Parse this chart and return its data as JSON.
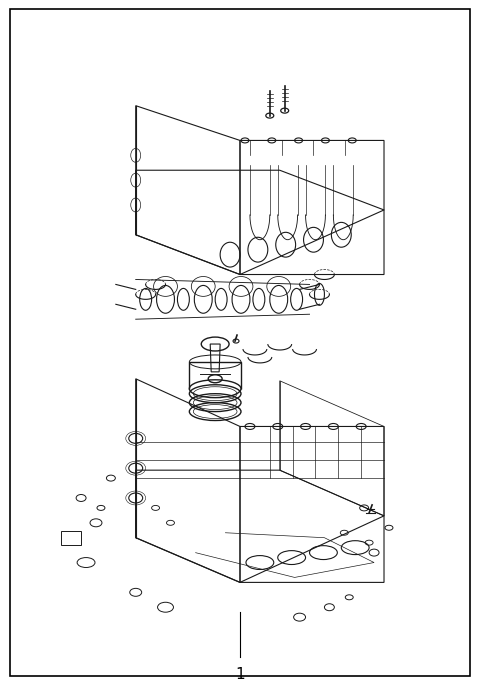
{
  "title": "1",
  "background_color": "#ffffff",
  "border_color": "#000000",
  "line_color": "#000000",
  "fig_width": 4.8,
  "fig_height": 6.87,
  "dpi": 100
}
